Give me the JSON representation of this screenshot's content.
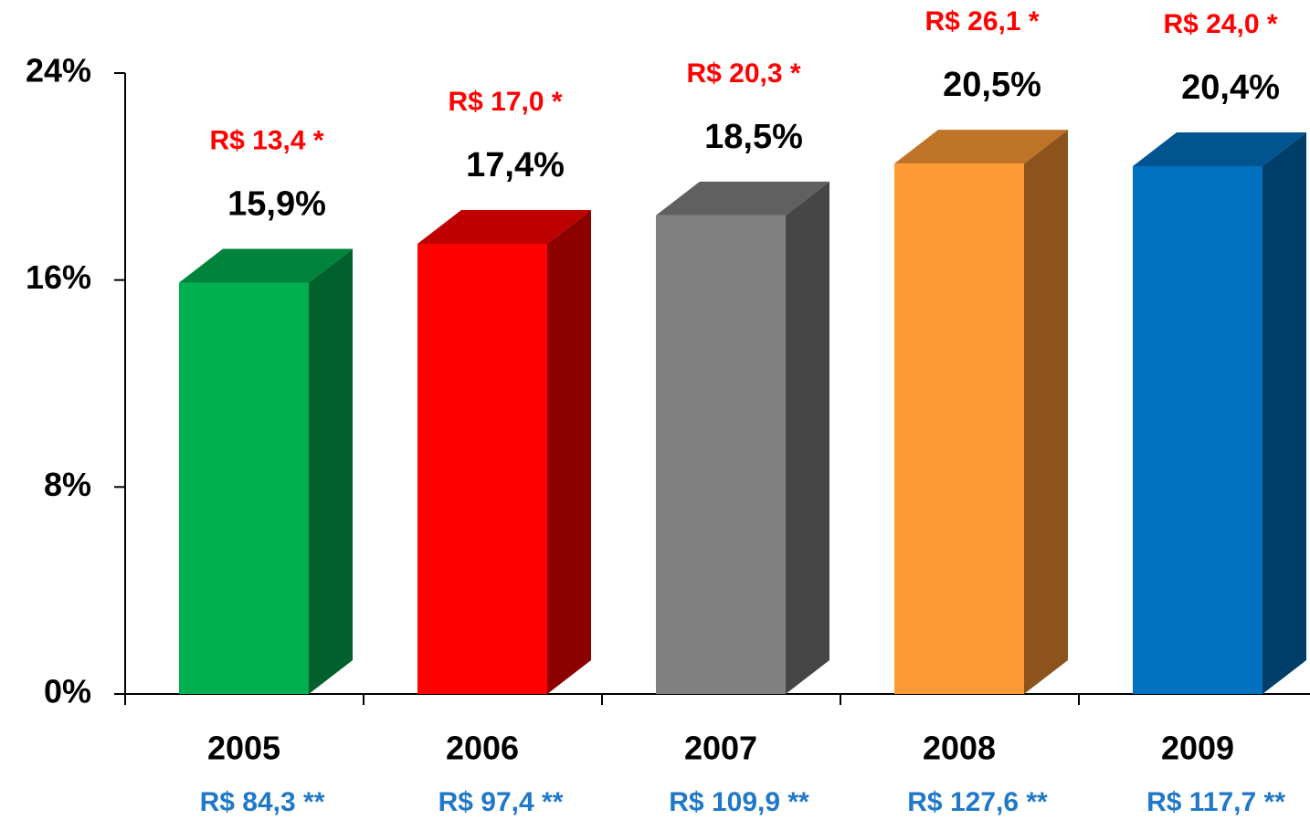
{
  "chart_data": {
    "type": "bar3d",
    "categories": [
      "2005",
      "2006",
      "2007",
      "2008",
      "2009"
    ],
    "values": [
      15.9,
      17.4,
      18.5,
      20.5,
      20.4
    ],
    "value_labels": [
      "15,9%",
      "17,4%",
      "18,5%",
      "20,5%",
      "20,4%"
    ],
    "top_labels": [
      "R$ 13,4 *",
      "R$ 17,0 *",
      "R$ 20,3 *",
      "R$ 26,1 *",
      "R$ 24,0 *"
    ],
    "bottom_labels": [
      "R$ 84,3 **",
      "R$ 97,4 **",
      "R$ 109,9 **",
      "R$ 127,6 **",
      "R$ 117,7 **"
    ],
    "colors": [
      "#00b050",
      "#ff0000",
      "#808080",
      "#ff9933",
      "#0070c0"
    ],
    "ylim": [
      0,
      24
    ],
    "yticks": [
      {
        "value": 0,
        "label": "0%"
      },
      {
        "value": 8,
        "label": "8%"
      },
      {
        "value": 16,
        "label": "16%"
      },
      {
        "value": 24,
        "label": "24%"
      }
    ]
  }
}
